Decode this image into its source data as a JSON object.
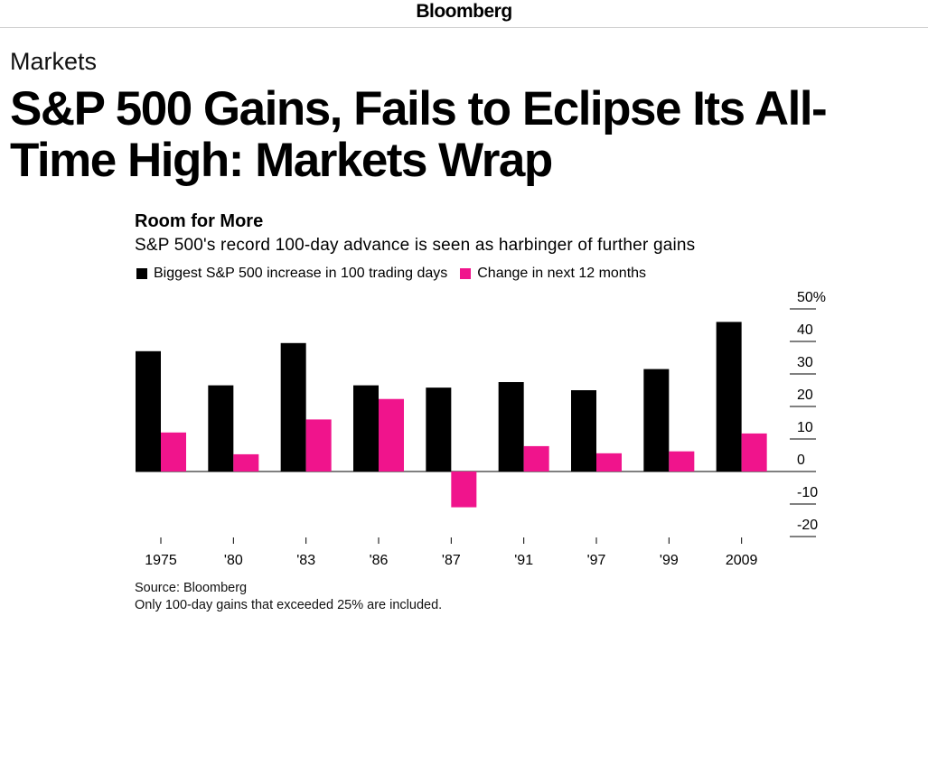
{
  "masthead": {
    "brand": "Bloomberg"
  },
  "article": {
    "section": "Markets",
    "headline": "S&P 500 Gains, Fails to Eclipse Its All-Time High: Markets Wrap"
  },
  "chart_data": {
    "type": "bar",
    "title": "Room for More",
    "subtitle": "S&P 500's record 100-day advance is seen as harbinger of further gains",
    "categories": [
      "1975",
      "'80",
      "'83",
      "'86",
      "'87",
      "'91",
      "'97",
      "'99",
      "2009"
    ],
    "series": [
      {
        "name": "Biggest S&P 500 increase in 100 trading days",
        "color": "#000000",
        "values": [
          37,
          26.5,
          39.5,
          26.5,
          25.8,
          27.5,
          25,
          31.5,
          46
        ]
      },
      {
        "name": "Change in next 12 months",
        "color": "#f0148c",
        "values": [
          12,
          5.3,
          16,
          22.3,
          -11,
          7.8,
          5.6,
          6.2,
          11.7
        ]
      }
    ],
    "ylim": [
      -20,
      50
    ],
    "yticks": [
      50,
      40,
      30,
      20,
      10,
      0,
      -10,
      -20
    ],
    "ytick_labels": [
      "50%",
      "40",
      "30",
      "20",
      "10",
      "0",
      "-10",
      "-20"
    ],
    "axis_position": "right",
    "legend_position": "top-left",
    "grid": false
  },
  "notes": {
    "source": "Source: Bloomberg",
    "footnote": "Only 100-day gains that exceeded 25% are included."
  }
}
